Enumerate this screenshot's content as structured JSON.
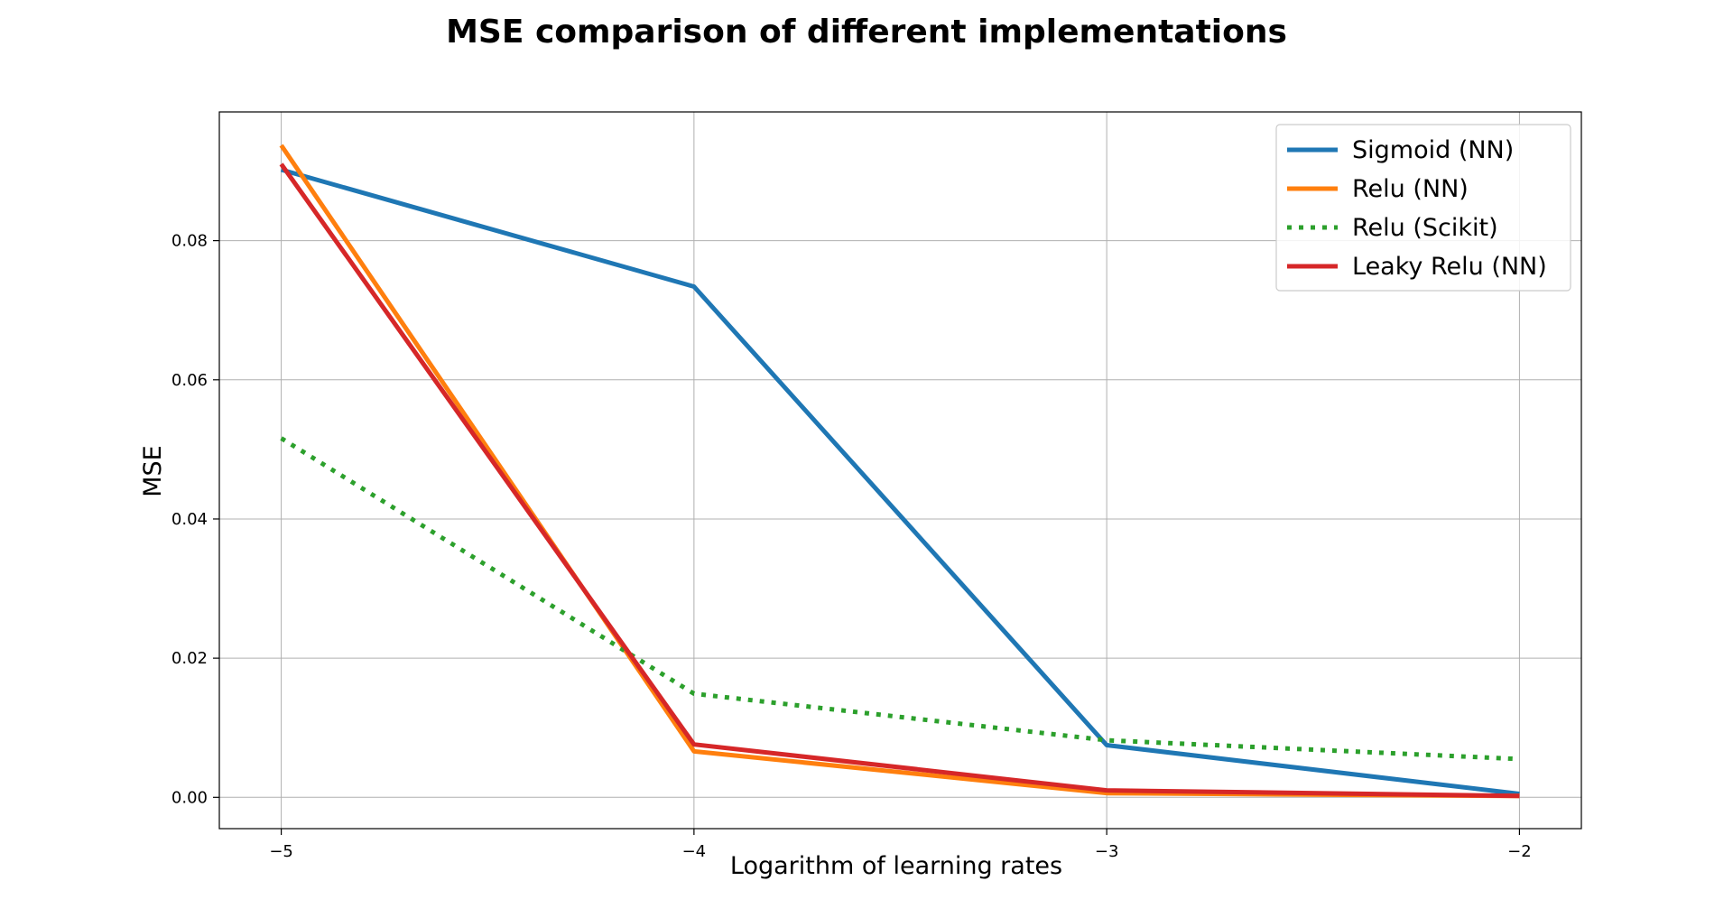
{
  "chart_data": {
    "type": "line",
    "title": "MSE comparison of different implementations",
    "xlabel": "Logarithm of learning rates",
    "ylabel": "MSE",
    "x": [
      -5,
      -4,
      -3,
      -2
    ],
    "xlim": [
      -5.15,
      -1.85
    ],
    "ylim": [
      -0.0045,
      0.0985
    ],
    "xticks": [
      -5,
      -4,
      -3,
      -2
    ],
    "xtick_labels": [
      "−5",
      "−4",
      "−3",
      "−2"
    ],
    "yticks": [
      0.0,
      0.02,
      0.04,
      0.06,
      0.08
    ],
    "ytick_labels": [
      "0.00",
      "0.02",
      "0.04",
      "0.06",
      "0.08"
    ],
    "grid": true,
    "legend_position": "top-right",
    "series": [
      {
        "name": "Sigmoid (NN)",
        "values": [
          0.0902,
          0.0734,
          0.0075,
          0.0005
        ],
        "color": "#1f77b4",
        "style": "solid"
      },
      {
        "name": "Relu (NN)",
        "values": [
          0.0937,
          0.0066,
          0.0006,
          0.0002
        ],
        "color": "#ff7f0e",
        "style": "solid"
      },
      {
        "name": "Relu (Scikit)",
        "values": [
          0.0516,
          0.0149,
          0.0082,
          0.0055
        ],
        "color": "#2ca02c",
        "style": "dotted"
      },
      {
        "name": "Leaky Relu (NN)",
        "values": [
          0.091,
          0.0076,
          0.001,
          0.0002
        ],
        "color": "#d62728",
        "style": "solid"
      }
    ]
  }
}
